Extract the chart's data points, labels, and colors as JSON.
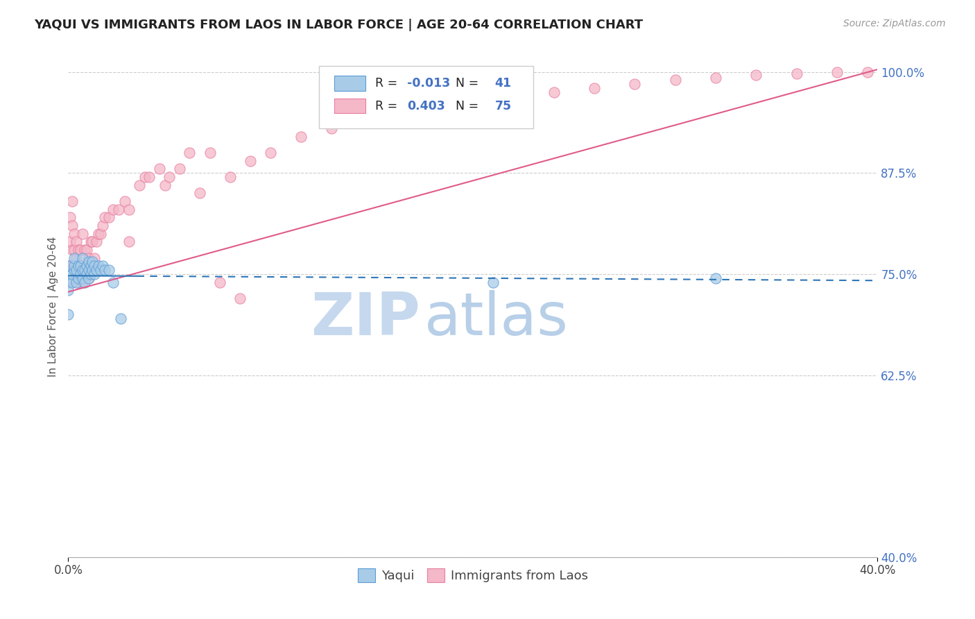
{
  "title": "YAQUI VS IMMIGRANTS FROM LAOS IN LABOR FORCE | AGE 20-64 CORRELATION CHART",
  "source_text": "Source: ZipAtlas.com",
  "ylabel": "In Labor Force | Age 20-64",
  "xlim": [
    0.0,
    0.4
  ],
  "ylim": [
    0.4,
    1.02
  ],
  "ytick_labels": [
    "40.0%",
    "62.5%",
    "75.0%",
    "87.5%",
    "100.0%"
  ],
  "ytick_vals": [
    0.4,
    0.625,
    0.75,
    0.875,
    1.0
  ],
  "xtick_labels": [
    "0.0%",
    "40.0%"
  ],
  "xtick_vals": [
    0.0,
    0.4
  ],
  "legend_blue_label": "Yaqui",
  "legend_pink_label": "Immigrants from Laos",
  "R_blue": "-0.013",
  "N_blue": "41",
  "R_pink": "0.403",
  "N_pink": "75",
  "blue_color": "#a8cce8",
  "pink_color": "#f4b8c8",
  "blue_edge_color": "#5b9bd5",
  "pink_edge_color": "#e87ca0",
  "blue_line_color": "#2e75b6",
  "pink_line_color": "#e05a8a",
  "blue_text_color": "#4472c4",
  "watermark_color": "#d0dff0",
  "background_color": "#ffffff",
  "grid_color": "#cccccc",
  "blue_scatter_x": [
    0.0,
    0.0,
    0.001,
    0.001,
    0.002,
    0.002,
    0.003,
    0.003,
    0.003,
    0.004,
    0.004,
    0.005,
    0.005,
    0.006,
    0.006,
    0.007,
    0.007,
    0.007,
    0.008,
    0.008,
    0.009,
    0.009,
    0.01,
    0.01,
    0.01,
    0.011,
    0.011,
    0.012,
    0.012,
    0.013,
    0.013,
    0.014,
    0.015,
    0.016,
    0.017,
    0.018,
    0.02,
    0.022,
    0.026,
    0.21,
    0.32
  ],
  "blue_scatter_y": [
    0.73,
    0.7,
    0.745,
    0.76,
    0.74,
    0.75,
    0.755,
    0.76,
    0.77,
    0.74,
    0.755,
    0.745,
    0.76,
    0.75,
    0.76,
    0.745,
    0.755,
    0.77,
    0.74,
    0.755,
    0.75,
    0.76,
    0.745,
    0.755,
    0.765,
    0.75,
    0.76,
    0.755,
    0.765,
    0.75,
    0.76,
    0.755,
    0.76,
    0.755,
    0.76,
    0.755,
    0.755,
    0.74,
    0.695,
    0.74,
    0.745
  ],
  "pink_scatter_x": [
    0.0,
    0.0,
    0.001,
    0.001,
    0.001,
    0.002,
    0.002,
    0.002,
    0.003,
    0.003,
    0.003,
    0.004,
    0.004,
    0.004,
    0.005,
    0.005,
    0.005,
    0.006,
    0.006,
    0.006,
    0.007,
    0.007,
    0.007,
    0.008,
    0.008,
    0.009,
    0.009,
    0.01,
    0.01,
    0.011,
    0.011,
    0.012,
    0.012,
    0.013,
    0.014,
    0.015,
    0.016,
    0.017,
    0.018,
    0.02,
    0.022,
    0.025,
    0.028,
    0.03,
    0.035,
    0.038,
    0.04,
    0.045,
    0.048,
    0.055,
    0.06,
    0.07,
    0.08,
    0.09,
    0.1,
    0.115,
    0.13,
    0.15,
    0.17,
    0.19,
    0.21,
    0.24,
    0.26,
    0.28,
    0.3,
    0.32,
    0.34,
    0.36,
    0.38,
    0.395,
    0.03,
    0.05,
    0.065,
    0.075,
    0.085
  ],
  "pink_scatter_y": [
    0.74,
    0.76,
    0.76,
    0.79,
    0.82,
    0.78,
    0.81,
    0.84,
    0.76,
    0.78,
    0.8,
    0.75,
    0.77,
    0.79,
    0.74,
    0.76,
    0.78,
    0.745,
    0.76,
    0.78,
    0.74,
    0.76,
    0.8,
    0.745,
    0.78,
    0.75,
    0.78,
    0.745,
    0.77,
    0.76,
    0.79,
    0.76,
    0.79,
    0.77,
    0.79,
    0.8,
    0.8,
    0.81,
    0.82,
    0.82,
    0.83,
    0.83,
    0.84,
    0.83,
    0.86,
    0.87,
    0.87,
    0.88,
    0.86,
    0.88,
    0.9,
    0.9,
    0.87,
    0.89,
    0.9,
    0.92,
    0.93,
    0.94,
    0.95,
    0.96,
    0.97,
    0.975,
    0.98,
    0.985,
    0.99,
    0.993,
    0.996,
    0.998,
    1.0,
    1.0,
    0.79,
    0.87,
    0.85,
    0.74,
    0.72
  ]
}
